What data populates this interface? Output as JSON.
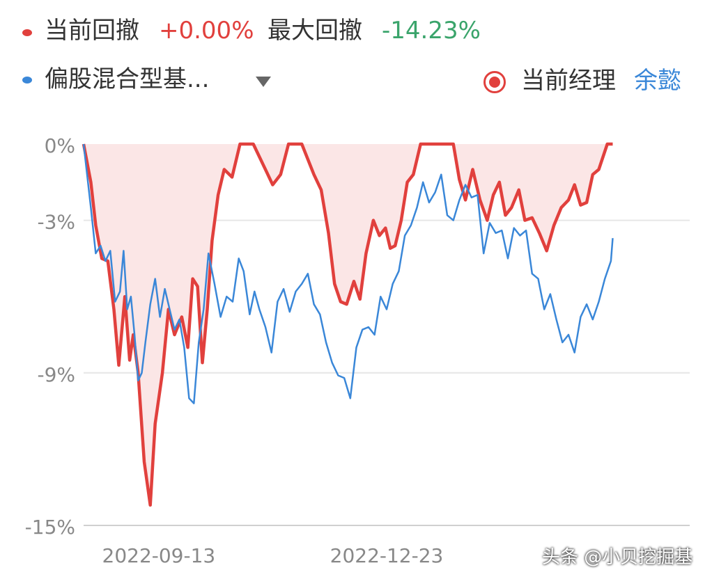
{
  "legend": {
    "series1_label": "当前回撤",
    "series1_value": "+0.00%",
    "max_label": "最大回撤",
    "max_value": "-14.23%",
    "series2_label": "偏股混合型基...",
    "manager_label": "当前经理",
    "manager_name": "余懿"
  },
  "colors": {
    "red": "#e1403d",
    "blue": "#3a87d8",
    "green": "#3aa46b",
    "text": "#333333",
    "axis_text": "#888888",
    "fill": "#fbe6e6"
  },
  "watermark": "头条 @小贝挖掘基",
  "chart_data": {
    "type": "line",
    "y_ticks": [
      "0%",
      "-3%",
      "-9%",
      "-15%"
    ],
    "y_tick_values": [
      0,
      -3,
      -9,
      -15
    ],
    "ylim": [
      -15,
      0
    ],
    "x_tick_labels": [
      "2022-09-13",
      "2022-12-23"
    ],
    "x_tick_positions": [
      0.124,
      0.5
    ],
    "series": [
      {
        "color": "red",
        "fill": true,
        "points": [
          [
            0.0,
            0.0
          ],
          [
            0.012,
            -1.5
          ],
          [
            0.02,
            -3.2
          ],
          [
            0.03,
            -4.5
          ],
          [
            0.04,
            -4.6
          ],
          [
            0.05,
            -6.5
          ],
          [
            0.058,
            -8.7
          ],
          [
            0.068,
            -6.0
          ],
          [
            0.076,
            -8.5
          ],
          [
            0.082,
            -7.5
          ],
          [
            0.09,
            -9.0
          ],
          [
            0.1,
            -12.5
          ],
          [
            0.11,
            -14.2
          ],
          [
            0.118,
            -11.0
          ],
          [
            0.13,
            -9.0
          ],
          [
            0.14,
            -6.5
          ],
          [
            0.15,
            -7.5
          ],
          [
            0.162,
            -6.8
          ],
          [
            0.172,
            -8.0
          ],
          [
            0.18,
            -5.3
          ],
          [
            0.188,
            -5.6
          ],
          [
            0.196,
            -8.6
          ],
          [
            0.204,
            -6.5
          ],
          [
            0.212,
            -3.8
          ],
          [
            0.222,
            -2.0
          ],
          [
            0.232,
            -1.0
          ],
          [
            0.245,
            -1.3
          ],
          [
            0.258,
            0.0
          ],
          [
            0.28,
            0.0
          ],
          [
            0.3,
            -1.0
          ],
          [
            0.312,
            -1.6
          ],
          [
            0.325,
            -1.2
          ],
          [
            0.338,
            0.0
          ],
          [
            0.36,
            0.0
          ],
          [
            0.38,
            -1.2
          ],
          [
            0.392,
            -1.8
          ],
          [
            0.404,
            -3.5
          ],
          [
            0.414,
            -5.5
          ],
          [
            0.424,
            -6.2
          ],
          [
            0.434,
            -6.3
          ],
          [
            0.446,
            -5.4
          ],
          [
            0.456,
            -6.1
          ],
          [
            0.466,
            -4.3
          ],
          [
            0.478,
            -3.0
          ],
          [
            0.488,
            -3.6
          ],
          [
            0.498,
            -3.3
          ],
          [
            0.506,
            -4.1
          ],
          [
            0.514,
            -4.0
          ],
          [
            0.524,
            -3.0
          ],
          [
            0.534,
            -1.5
          ],
          [
            0.544,
            -1.2
          ],
          [
            0.556,
            0.0
          ],
          [
            0.61,
            0.0
          ],
          [
            0.62,
            -1.4
          ],
          [
            0.63,
            -2.2
          ],
          [
            0.642,
            -1.0
          ],
          [
            0.654,
            -2.2
          ],
          [
            0.666,
            -3.0
          ],
          [
            0.676,
            -2.0
          ],
          [
            0.686,
            -1.5
          ],
          [
            0.696,
            -2.8
          ],
          [
            0.706,
            -2.5
          ],
          [
            0.718,
            -1.8
          ],
          [
            0.728,
            -3.0
          ],
          [
            0.74,
            -2.9
          ],
          [
            0.752,
            -3.5
          ],
          [
            0.764,
            -4.2
          ],
          [
            0.776,
            -3.2
          ],
          [
            0.788,
            -2.5
          ],
          [
            0.8,
            -2.2
          ],
          [
            0.81,
            -1.6
          ],
          [
            0.82,
            -2.4
          ],
          [
            0.83,
            -2.3
          ],
          [
            0.84,
            -1.2
          ],
          [
            0.85,
            -1.0
          ],
          [
            0.864,
            0.0
          ],
          [
            0.873,
            0.0
          ]
        ]
      },
      {
        "color": "blue",
        "fill": false,
        "points": [
          [
            0.0,
            0.0
          ],
          [
            0.012,
            -2.5
          ],
          [
            0.02,
            -4.3
          ],
          [
            0.028,
            -4.0
          ],
          [
            0.036,
            -4.6
          ],
          [
            0.044,
            -4.2
          ],
          [
            0.052,
            -6.2
          ],
          [
            0.06,
            -5.8
          ],
          [
            0.066,
            -4.2
          ],
          [
            0.072,
            -6.5
          ],
          [
            0.078,
            -6.0
          ],
          [
            0.084,
            -7.5
          ],
          [
            0.09,
            -9.3
          ],
          [
            0.096,
            -9.0
          ],
          [
            0.102,
            -7.8
          ],
          [
            0.11,
            -6.3
          ],
          [
            0.118,
            -5.3
          ],
          [
            0.126,
            -6.8
          ],
          [
            0.134,
            -5.7
          ],
          [
            0.142,
            -6.5
          ],
          [
            0.15,
            -7.3
          ],
          [
            0.158,
            -6.9
          ],
          [
            0.166,
            -8.0
          ],
          [
            0.174,
            -10.0
          ],
          [
            0.182,
            -10.2
          ],
          [
            0.19,
            -7.8
          ],
          [
            0.198,
            -6.5
          ],
          [
            0.206,
            -4.3
          ],
          [
            0.216,
            -5.5
          ],
          [
            0.226,
            -6.8
          ],
          [
            0.236,
            -6.0
          ],
          [
            0.246,
            -6.2
          ],
          [
            0.256,
            -4.5
          ],
          [
            0.264,
            -5.0
          ],
          [
            0.274,
            -6.7
          ],
          [
            0.282,
            -5.8
          ],
          [
            0.29,
            -6.5
          ],
          [
            0.3,
            -7.2
          ],
          [
            0.31,
            -8.2
          ],
          [
            0.32,
            -6.2
          ],
          [
            0.33,
            -5.7
          ],
          [
            0.34,
            -6.6
          ],
          [
            0.35,
            -5.8
          ],
          [
            0.36,
            -5.5
          ],
          [
            0.37,
            -5.1
          ],
          [
            0.38,
            -6.3
          ],
          [
            0.39,
            -6.7
          ],
          [
            0.4,
            -7.8
          ],
          [
            0.41,
            -8.6
          ],
          [
            0.42,
            -9.1
          ],
          [
            0.43,
            -9.2
          ],
          [
            0.44,
            -10.0
          ],
          [
            0.45,
            -8.0
          ],
          [
            0.46,
            -7.3
          ],
          [
            0.47,
            -7.2
          ],
          [
            0.48,
            -7.5
          ],
          [
            0.49,
            -6.0
          ],
          [
            0.5,
            -6.5
          ],
          [
            0.51,
            -5.5
          ],
          [
            0.52,
            -5.0
          ],
          [
            0.53,
            -3.6
          ],
          [
            0.54,
            -3.2
          ],
          [
            0.55,
            -2.5
          ],
          [
            0.56,
            -1.5
          ],
          [
            0.57,
            -2.3
          ],
          [
            0.58,
            -1.9
          ],
          [
            0.59,
            -1.2
          ],
          [
            0.6,
            -2.8
          ],
          [
            0.61,
            -3.0
          ],
          [
            0.62,
            -2.2
          ],
          [
            0.63,
            -1.6
          ],
          [
            0.64,
            -2.1
          ],
          [
            0.65,
            -2.0
          ],
          [
            0.66,
            -4.3
          ],
          [
            0.67,
            -3.1
          ],
          [
            0.68,
            -3.5
          ],
          [
            0.69,
            -3.4
          ],
          [
            0.7,
            -4.5
          ],
          [
            0.71,
            -3.3
          ],
          [
            0.72,
            -3.6
          ],
          [
            0.73,
            -3.4
          ],
          [
            0.74,
            -5.1
          ],
          [
            0.75,
            -5.3
          ],
          [
            0.76,
            -6.5
          ],
          [
            0.77,
            -5.9
          ],
          [
            0.78,
            -6.9
          ],
          [
            0.79,
            -7.8
          ],
          [
            0.8,
            -7.5
          ],
          [
            0.81,
            -8.2
          ],
          [
            0.82,
            -6.8
          ],
          [
            0.83,
            -6.3
          ],
          [
            0.84,
            -6.9
          ],
          [
            0.85,
            -6.2
          ],
          [
            0.86,
            -5.3
          ],
          [
            0.87,
            -4.6
          ],
          [
            0.873,
            -3.7
          ]
        ]
      }
    ]
  }
}
